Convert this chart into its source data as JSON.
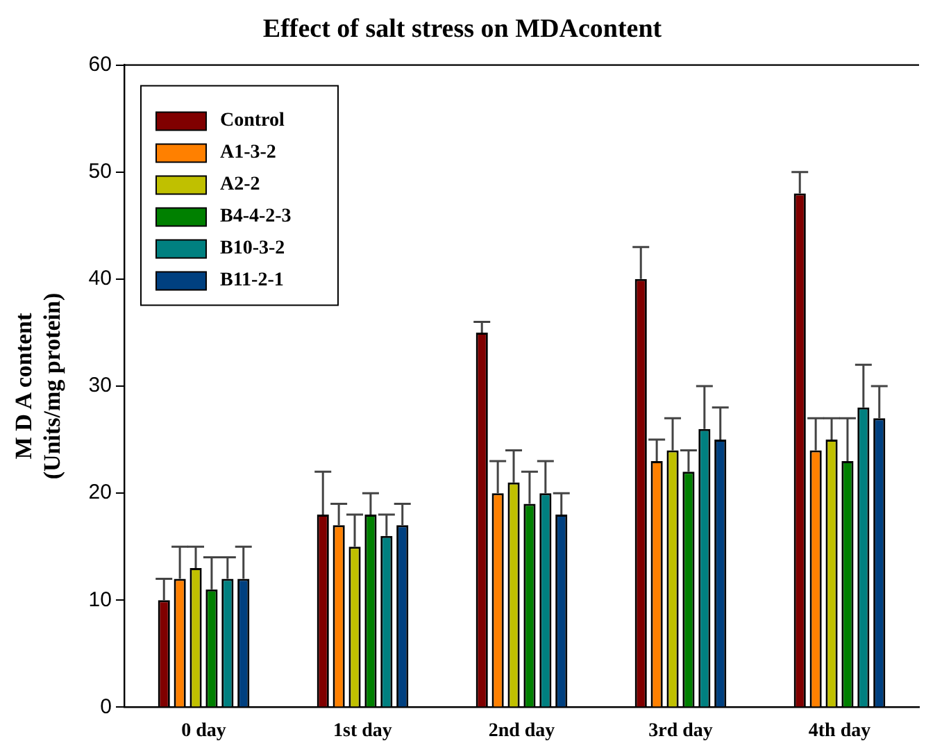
{
  "chart_data": {
    "type": "bar",
    "title": "Effect of salt stress on MDAcontent",
    "ylabel": "M D A content\n(Units/mg protein)",
    "categories": [
      "0 day",
      "1st day",
      "2nd day",
      "3rd day",
      "4th day"
    ],
    "series": [
      {
        "name": "Control",
        "color": "#800000",
        "values": [
          10,
          18,
          35,
          40,
          48
        ],
        "errors": [
          [
            10,
            12
          ],
          [
            18,
            22
          ],
          [
            35,
            36
          ],
          [
            40,
            43
          ],
          [
            48,
            50
          ]
        ]
      },
      {
        "name": "A1-3-2",
        "color": "#ff8000",
        "values": [
          12,
          17,
          20,
          23,
          24
        ],
        "errors": [
          [
            12,
            15
          ],
          [
            17,
            19
          ],
          [
            20,
            23
          ],
          [
            23,
            25
          ],
          [
            24,
            27
          ]
        ]
      },
      {
        "name": "A2-2",
        "color": "#c0c000",
        "values": [
          13,
          15,
          21,
          24,
          25
        ],
        "errors": [
          [
            13,
            15
          ],
          [
            15,
            18
          ],
          [
            21,
            24
          ],
          [
            24,
            27
          ],
          [
            25,
            27
          ]
        ]
      },
      {
        "name": "B4-4-2-3",
        "color": "#008000",
        "values": [
          11,
          18,
          19,
          22,
          23
        ],
        "errors": [
          [
            11,
            14
          ],
          [
            18,
            20
          ],
          [
            19,
            22
          ],
          [
            22,
            24
          ],
          [
            23,
            27
          ]
        ]
      },
      {
        "name": "B10-3-2",
        "color": "#008080",
        "values": [
          12,
          16,
          20,
          26,
          28
        ],
        "errors": [
          [
            12,
            14
          ],
          [
            16,
            18
          ],
          [
            20,
            23
          ],
          [
            26,
            30
          ],
          [
            28,
            32
          ]
        ]
      },
      {
        "name": "B11-2-1",
        "color": "#004080",
        "values": [
          12,
          17,
          18,
          25,
          27
        ],
        "errors": [
          [
            12,
            15
          ],
          [
            17,
            19
          ],
          [
            18,
            20
          ],
          [
            25,
            28
          ],
          [
            27,
            30
          ]
        ]
      }
    ],
    "ylim": [
      0,
      60
    ],
    "yticks": [
      0,
      10,
      20,
      30,
      40,
      50,
      60
    ],
    "grid": false,
    "legend": "top left"
  }
}
